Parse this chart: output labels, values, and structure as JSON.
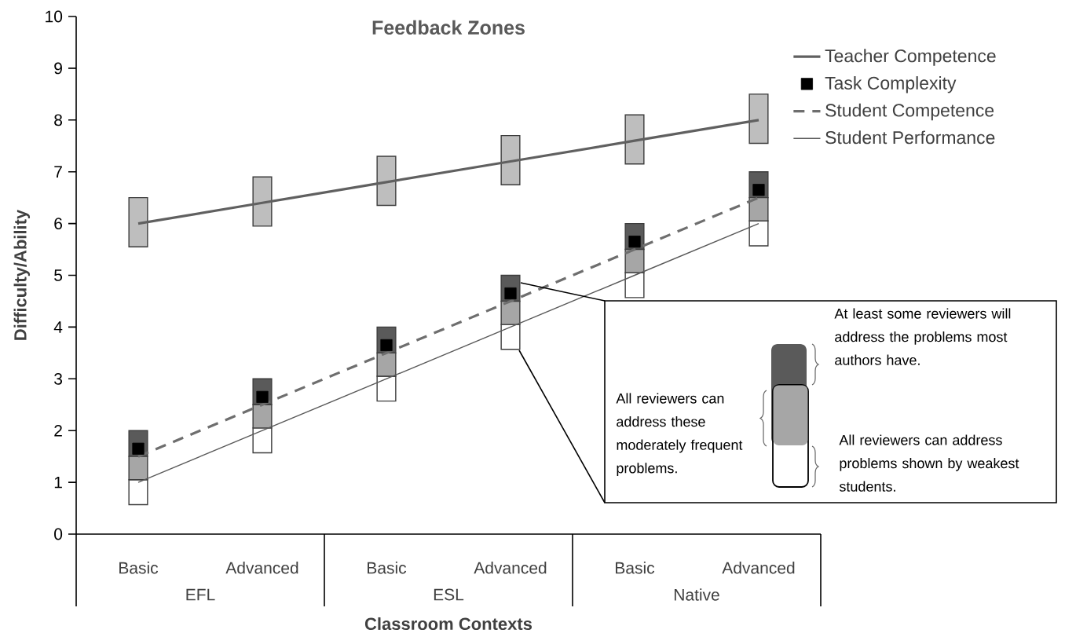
{
  "chart_data": {
    "type": "line",
    "title": "Feedback Zones",
    "xlabel": "Classroom Contexts",
    "ylabel": "Difficulty/Ability",
    "categories": [
      "Basic",
      "Advanced",
      "Basic",
      "Advanced",
      "Basic",
      "Advanced"
    ],
    "series": [
      {
        "name": "Teacher Competence",
        "color": "#606060",
        "line_style": "solid",
        "values": [
          6,
          6.4,
          6.8,
          7.2,
          7.6,
          8
        ]
      },
      {
        "name": "Task Complexity",
        "type": "scatter",
        "color": "#000000",
        "marker": "square",
        "values": [
          1.65,
          2.65,
          3.65,
          4.65,
          5.65,
          6.65
        ]
      },
      {
        "name": "Student Competence",
        "color": "#6e6e6e",
        "line_style": "dashed",
        "values": [
          1.5,
          2.5,
          3.5,
          4.5,
          5.5,
          6.5
        ]
      },
      {
        "name": "Student Performance",
        "color": "#595959",
        "line_style": "solid",
        "values": [
          1,
          2,
          3,
          4,
          5,
          6
        ]
      },
      {
        "type": "bar",
        "color": "#bebebe",
        "base": [
          5.55,
          5.95,
          6.35,
          6.75,
          7.15,
          7.55
        ],
        "values": [
          0.95,
          0.95,
          0.95,
          0.95,
          0.95,
          0.95
        ]
      },
      {
        "type": "bar",
        "color": "#5a5a5a",
        "base": [
          1.5,
          2.5,
          3.5,
          4.5,
          5.5,
          6.5
        ],
        "values": [
          0.5,
          0.5,
          0.5,
          0.5,
          0.5,
          0.5
        ]
      },
      {
        "type": "bar",
        "color": "#ffffff",
        "base": [
          0.57,
          1.57,
          2.57,
          3.57,
          4.57,
          5.57
        ],
        "values": [
          0.48,
          0.48,
          0.48,
          0.48,
          0.48,
          0.48
        ]
      },
      {
        "type": "bar",
        "color": "#a6a6a6",
        "base": [
          1.05,
          2.05,
          3.05,
          4.05,
          5.05,
          6.05
        ],
        "values": [
          0.45,
          0.45,
          0.45,
          0.45,
          0.45,
          0.45
        ]
      }
    ],
    "ylim": [
      0,
      10
    ],
    "yticks": [
      0,
      1,
      2,
      3,
      4,
      5,
      6,
      7,
      8,
      9,
      10
    ],
    "legend": "top right",
    "marker": "none",
    "annotations": [
      "EFL",
      "ESL",
      "Native",
      "At least some reviewers will address the problems most authors have.",
      "All reviewers can address these moderately frequent problems.",
      "All reviewers can address problems shown by weakest students."
    ]
  }
}
